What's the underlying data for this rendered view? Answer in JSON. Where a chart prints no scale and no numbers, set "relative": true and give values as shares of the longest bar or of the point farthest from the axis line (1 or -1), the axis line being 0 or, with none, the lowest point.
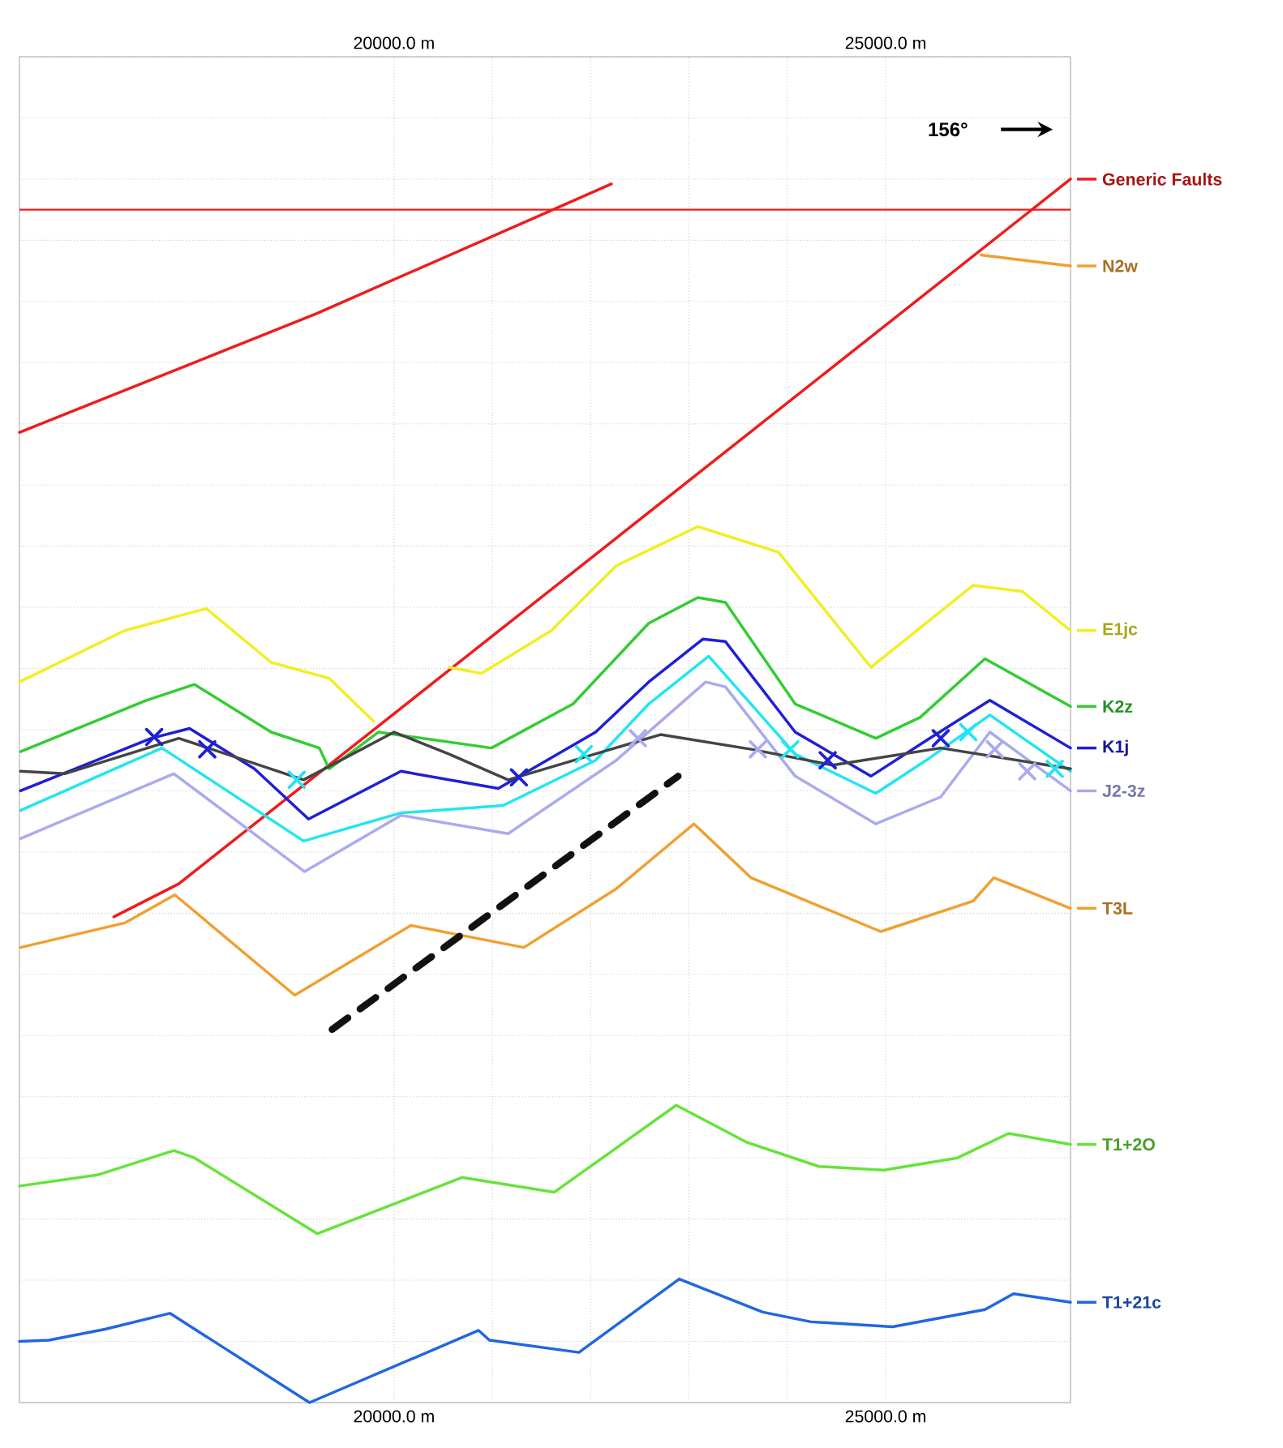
{
  "chart_data": {
    "type": "line",
    "relative": true,
    "grid": true,
    "legend": "right",
    "xlim": [
      16190,
      26880
    ],
    "xticks": [
      {
        "value": 20000,
        "label": "20000.0 m"
      },
      {
        "value": 25000,
        "label": "25000.0 m"
      }
    ],
    "x2lim": [
      16190,
      26880
    ],
    "x2ticks": [
      {
        "value": 20000,
        "label": "20000.0 m"
      },
      {
        "value": 25000,
        "label": "25000.0 m"
      }
    ],
    "annotations": [
      "156°"
    ],
    "ref_lines": [
      {
        "axis": "y",
        "value": 0.975,
        "color": "#ee1c1c"
      }
    ],
    "series": [
      {
        "name": "Generic Faults",
        "color": "#ee1c1c",
        "x": [
          16190,
          19210,
          22210,
          null,
          17150,
          17810,
          26880
        ],
        "values": [
          0.793,
          0.89,
          0.996,
          null,
          0.397,
          0.424,
          1.0
        ]
      },
      {
        "name": "N2w",
        "color": "#f0a030",
        "x": [
          25970,
          26880
        ],
        "values": [
          0.938,
          0.929
        ]
      },
      {
        "name": "E1jc",
        "color": "#f2ee22",
        "x": [
          16190,
          17260,
          18090,
          18750,
          19340,
          19790,
          null,
          20560,
          20890,
          21600,
          22260,
          23090,
          23910,
          24850,
          25890,
          26390,
          26880
        ],
        "values": [
          0.589,
          0.631,
          0.649,
          0.605,
          0.592,
          0.557,
          null,
          0.601,
          0.596,
          0.631,
          0.684,
          0.716,
          0.695,
          0.601,
          0.668,
          0.663,
          0.631
        ]
      },
      {
        "name": "K2z",
        "color": "#33cc33",
        "x": [
          16200,
          17480,
          17970,
          18750,
          19240,
          19340,
          19840,
          20990,
          21820,
          22590,
          23090,
          23370,
          24080,
          24900,
          25350,
          26010,
          26880
        ],
        "values": [
          0.532,
          0.574,
          0.587,
          0.548,
          0.535,
          0.518,
          0.548,
          0.535,
          0.571,
          0.637,
          0.658,
          0.654,
          0.571,
          0.543,
          0.56,
          0.608,
          0.569
        ]
      },
      {
        "name": "K1j",
        "color": "#1f1fd6",
        "x": [
          16200,
          17530,
          17920,
          18580,
          19130,
          20070,
          21060,
          22050,
          22590,
          23140,
          23370,
          24080,
          24850,
          25450,
          26060,
          26880
        ],
        "values": [
          0.5,
          0.543,
          0.551,
          0.518,
          0.477,
          0.516,
          0.502,
          0.548,
          0.589,
          0.624,
          0.622,
          0.548,
          0.512,
          0.543,
          0.574,
          0.535
        ]
      },
      {
        "color": "#22e5f0",
        "x": [
          16200,
          17640,
          19080,
          20070,
          21110,
          22050,
          22590,
          23200,
          24080,
          24900,
          25450,
          26060,
          26880
        ],
        "values": [
          0.484,
          0.535,
          0.459,
          0.482,
          0.488,
          0.525,
          0.571,
          0.61,
          0.53,
          0.498,
          0.527,
          0.562,
          0.516
        ]
      },
      {
        "name": "J2-3z",
        "color": "#aaaaee",
        "x": [
          16200,
          17760,
          19090,
          20070,
          21160,
          22260,
          23170,
          23370,
          24080,
          24900,
          25560,
          26060,
          26880
        ],
        "values": [
          0.461,
          0.514,
          0.434,
          0.48,
          0.465,
          0.525,
          0.589,
          0.585,
          0.512,
          0.473,
          0.495,
          0.548,
          0.5
        ]
      },
      {
        "color": "#444444",
        "x": [
          16200,
          16650,
          17810,
          19080,
          20000,
          20560,
          21160,
          22710,
          23630,
          24460,
          25560,
          26880
        ],
        "values": [
          0.516,
          0.514,
          0.543,
          0.509,
          0.548,
          0.53,
          0.509,
          0.546,
          0.534,
          0.521,
          0.535,
          0.518
        ]
      },
      {
        "name": "T3L",
        "color": "#f0a030",
        "x": [
          16200,
          17260,
          17770,
          18990,
          20170,
          21320,
          22260,
          23050,
          23630,
          24950,
          25890,
          26100,
          26880
        ],
        "values": [
          0.372,
          0.392,
          0.415,
          0.333,
          0.39,
          0.372,
          0.42,
          0.473,
          0.429,
          0.385,
          0.41,
          0.429,
          0.404
        ]
      },
      {
        "name": "T1+2O",
        "color": "#66e33a",
        "x": [
          16190,
          16980,
          17760,
          17970,
          19220,
          20690,
          21630,
          22870,
          23580,
          24320,
          24980,
          25730,
          26250,
          26880
        ],
        "values": [
          0.177,
          0.186,
          0.206,
          0.2,
          0.138,
          0.184,
          0.172,
          0.243,
          0.213,
          0.193,
          0.19,
          0.2,
          0.22,
          0.211
        ]
      },
      {
        "name": "T1+21c",
        "color": "#2266e0",
        "x": [
          16190,
          16490,
          17060,
          17720,
          19140,
          20860,
          20970,
          21880,
          22900,
          23750,
          24240,
          25070,
          26010,
          26300,
          26880
        ],
        "values": [
          0.05,
          0.051,
          0.06,
          0.073,
          0.0,
          0.059,
          0.051,
          0.041,
          0.101,
          0.074,
          0.066,
          0.062,
          0.076,
          0.089,
          0.082
        ]
      },
      {
        "color": "#111111",
        "line_style": "dashed",
        "x": [
          19370,
          22890
        ],
        "values": [
          0.305,
          0.512
        ]
      },
      {
        "type": "scatter",
        "marker": "cross",
        "color": "#1f1fd6",
        "x": [
          17560,
          18100,
          21270,
          24410,
          25560
        ],
        "values": [
          0.544,
          0.534,
          0.511,
          0.525,
          0.543
        ]
      },
      {
        "type": "scatter",
        "marker": "cross",
        "color": "#22e5f0",
        "x": [
          19010,
          21930,
          24030,
          25840,
          26720
        ],
        "values": [
          0.509,
          0.53,
          0.534,
          0.548,
          0.518
        ]
      },
      {
        "type": "scatter",
        "marker": "cross",
        "color": "#aaaaee",
        "x": [
          22480,
          23700,
          26110,
          26440
        ],
        "values": [
          0.543,
          0.534,
          0.534,
          0.516
        ]
      }
    ]
  }
}
